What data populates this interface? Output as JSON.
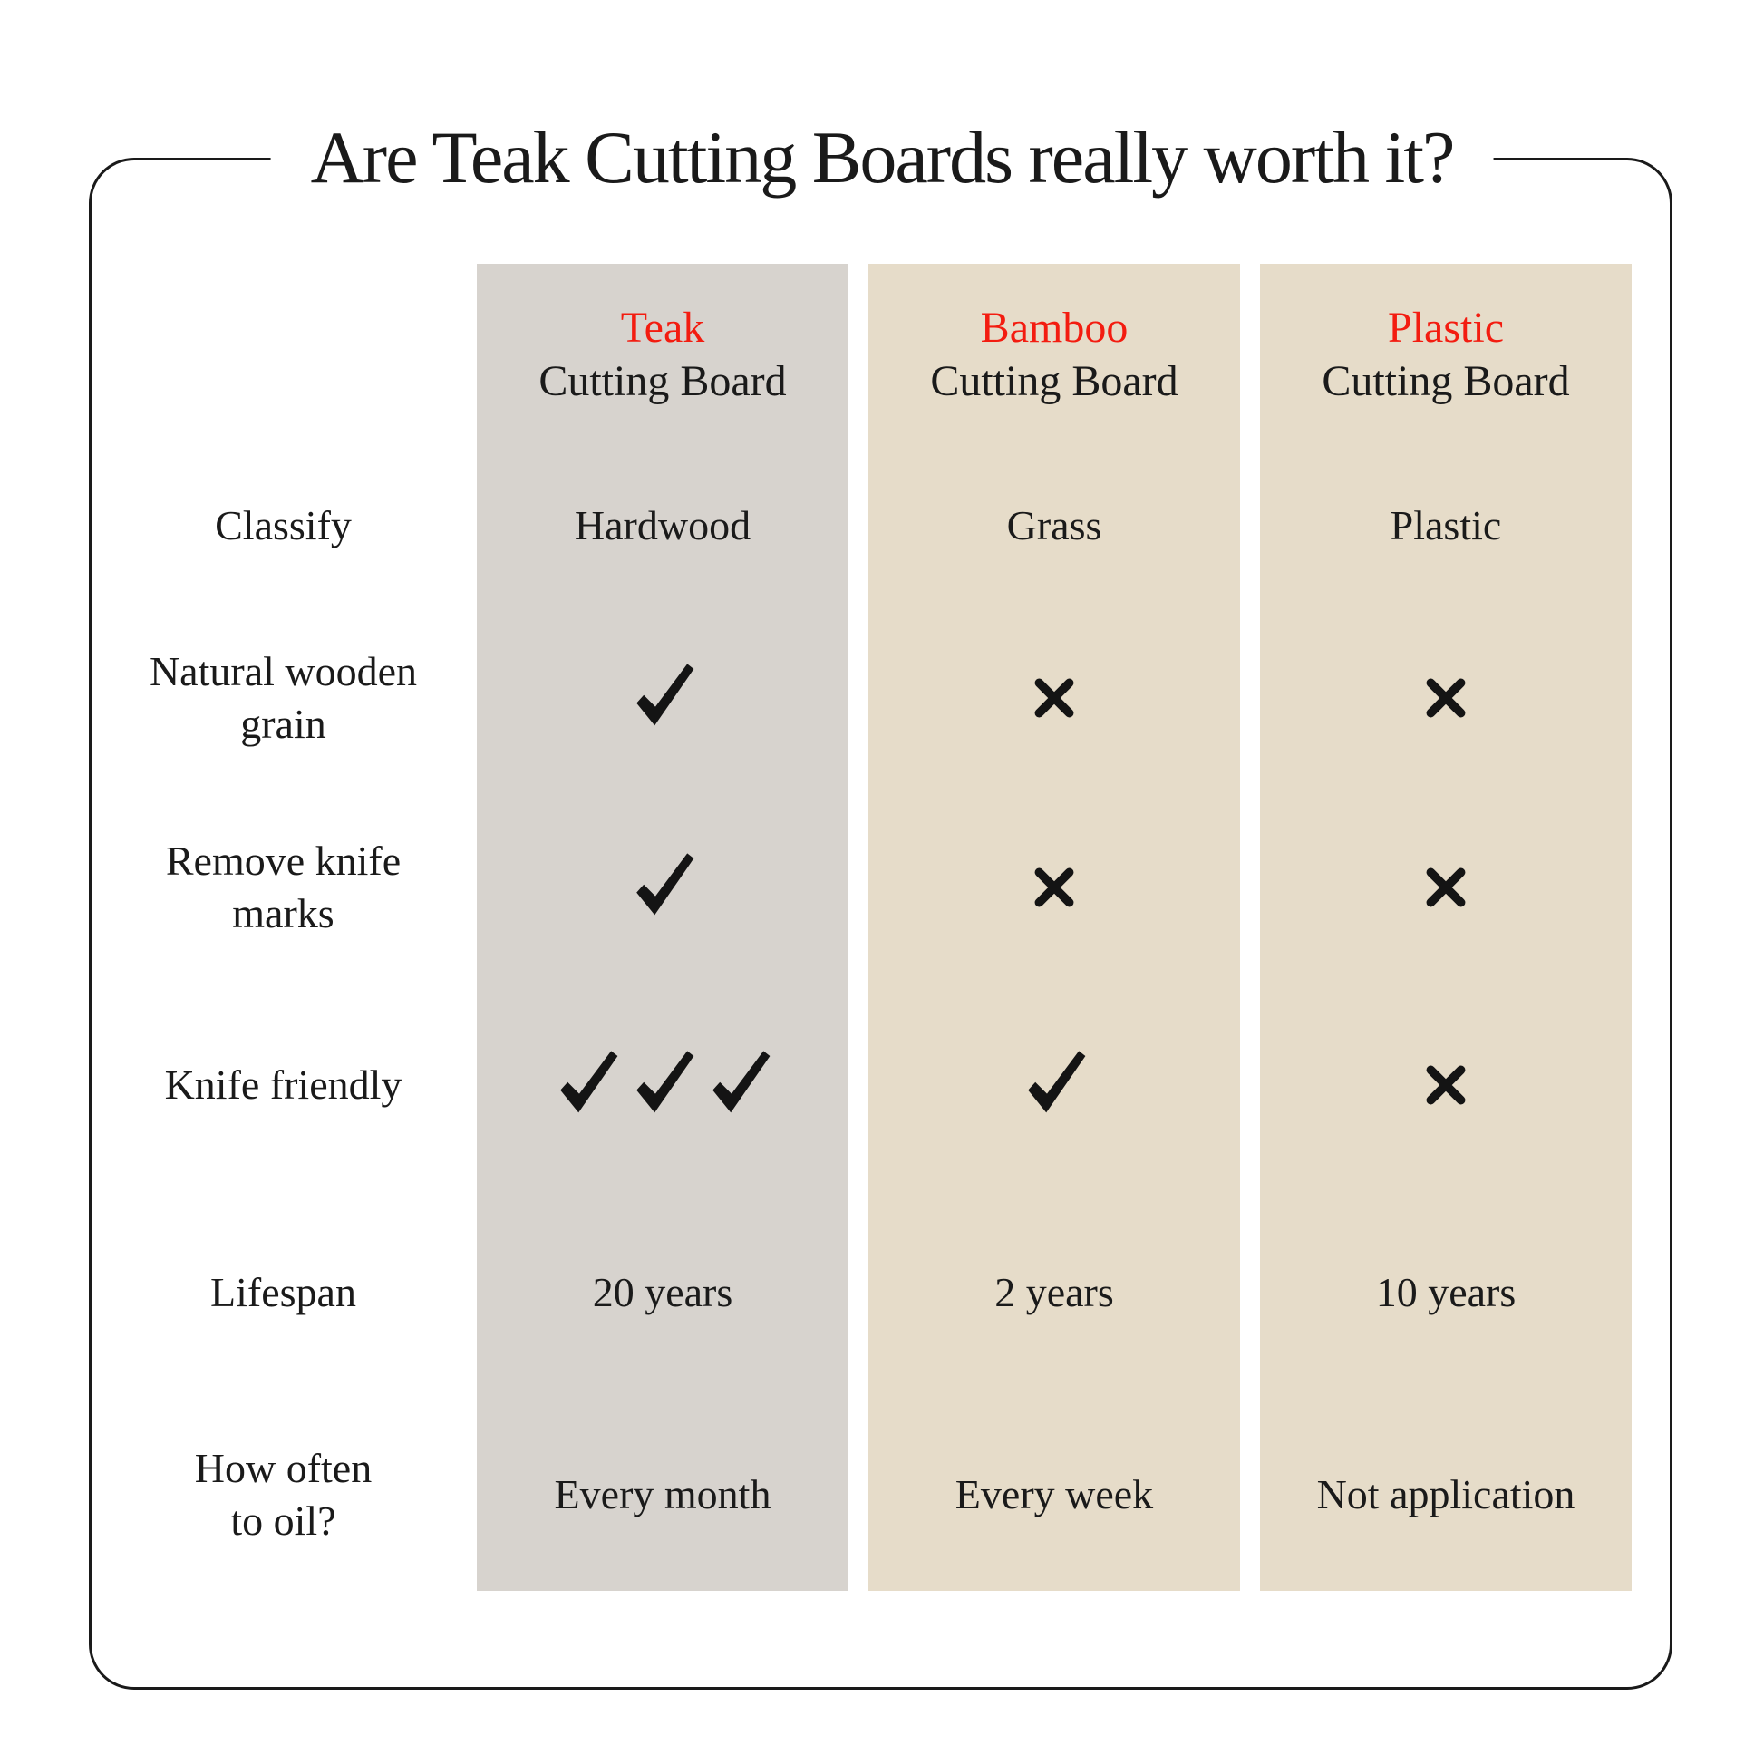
{
  "title": "Are Teak Cutting Boards really worth it?",
  "colors": {
    "teak_column_bg": "#d7d3ce",
    "other_column_bg": "#e6dcc9",
    "accent_red": "#f31c10",
    "text": "#1a1a1a",
    "border": "#1a1a1a"
  },
  "columns": [
    {
      "name": "Teak",
      "subtitle": "Cutting Board"
    },
    {
      "name": "Bamboo",
      "subtitle": "Cutting Board"
    },
    {
      "name": "Plastic",
      "subtitle": "Cutting Board"
    }
  ],
  "rows": [
    {
      "label": "Classify",
      "values": [
        {
          "type": "text",
          "text": "Hardwood"
        },
        {
          "type": "text",
          "text": "Grass"
        },
        {
          "type": "text",
          "text": "Plastic"
        }
      ]
    },
    {
      "label": "Natural wooden\ngrain",
      "values": [
        {
          "type": "check",
          "count": 1
        },
        {
          "type": "cross",
          "count": 1
        },
        {
          "type": "cross",
          "count": 1
        }
      ]
    },
    {
      "label": "Remove knife\nmarks",
      "values": [
        {
          "type": "check",
          "count": 1
        },
        {
          "type": "cross",
          "count": 1
        },
        {
          "type": "cross",
          "count": 1
        }
      ]
    },
    {
      "label": "Knife friendly",
      "values": [
        {
          "type": "check",
          "count": 3
        },
        {
          "type": "check",
          "count": 1
        },
        {
          "type": "cross",
          "count": 1
        }
      ]
    },
    {
      "label": "Lifespan",
      "values": [
        {
          "type": "text",
          "text": "20 years"
        },
        {
          "type": "text",
          "text": "2 years"
        },
        {
          "type": "text",
          "text": "10 years"
        }
      ]
    },
    {
      "label": "How often\nto oil?",
      "values": [
        {
          "type": "text",
          "text": "Every month"
        },
        {
          "type": "text",
          "text": "Every week"
        },
        {
          "type": "text",
          "text": "Not application"
        }
      ]
    }
  ]
}
